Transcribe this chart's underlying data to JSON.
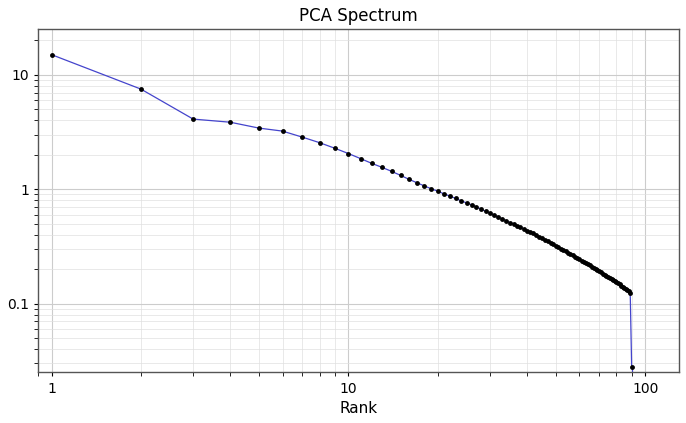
{
  "title": "PCA Spectrum",
  "xlabel": "Rank",
  "xlim_min": 0.9,
  "xlim_max": 130,
  "ylim_min": 0.025,
  "ylim_max": 25,
  "line_color": "#4444cc",
  "marker_color": "black",
  "marker_size": 3.5,
  "line_width": 0.9,
  "vertical_line_color": "#4444cc",
  "bg_color": "#ffffff",
  "grid_color": "#cccccc",
  "grid_color_minor": "#e0e0e0",
  "title_fontsize": 12,
  "xlabel_fontsize": 11,
  "tick_labelsize": 10,
  "eigenvalues": [
    15.0,
    7.5,
    4.1,
    3.85,
    3.42,
    3.22,
    2.85,
    2.55,
    2.28,
    2.05,
    1.85,
    1.68,
    1.55,
    1.43,
    1.32,
    1.22,
    1.14,
    1.07,
    1.01,
    0.96,
    0.91,
    0.87,
    0.83,
    0.79,
    0.76,
    0.73,
    0.7,
    0.67,
    0.64,
    0.62,
    0.59,
    0.57,
    0.55,
    0.53,
    0.51,
    0.495,
    0.48,
    0.465,
    0.45,
    0.435,
    0.42,
    0.41,
    0.395,
    0.383,
    0.371,
    0.36,
    0.35,
    0.34,
    0.33,
    0.32,
    0.311,
    0.302,
    0.294,
    0.286,
    0.278,
    0.271,
    0.264,
    0.257,
    0.25,
    0.244,
    0.238,
    0.232,
    0.226,
    0.221,
    0.216,
    0.211,
    0.206,
    0.201,
    0.196,
    0.192,
    0.187,
    0.183,
    0.179,
    0.175,
    0.171,
    0.167,
    0.164,
    0.16,
    0.157,
    0.153,
    0.15,
    0.147,
    0.143,
    0.14,
    0.137,
    0.134,
    0.131,
    0.128,
    0.125,
    0.028
  ]
}
